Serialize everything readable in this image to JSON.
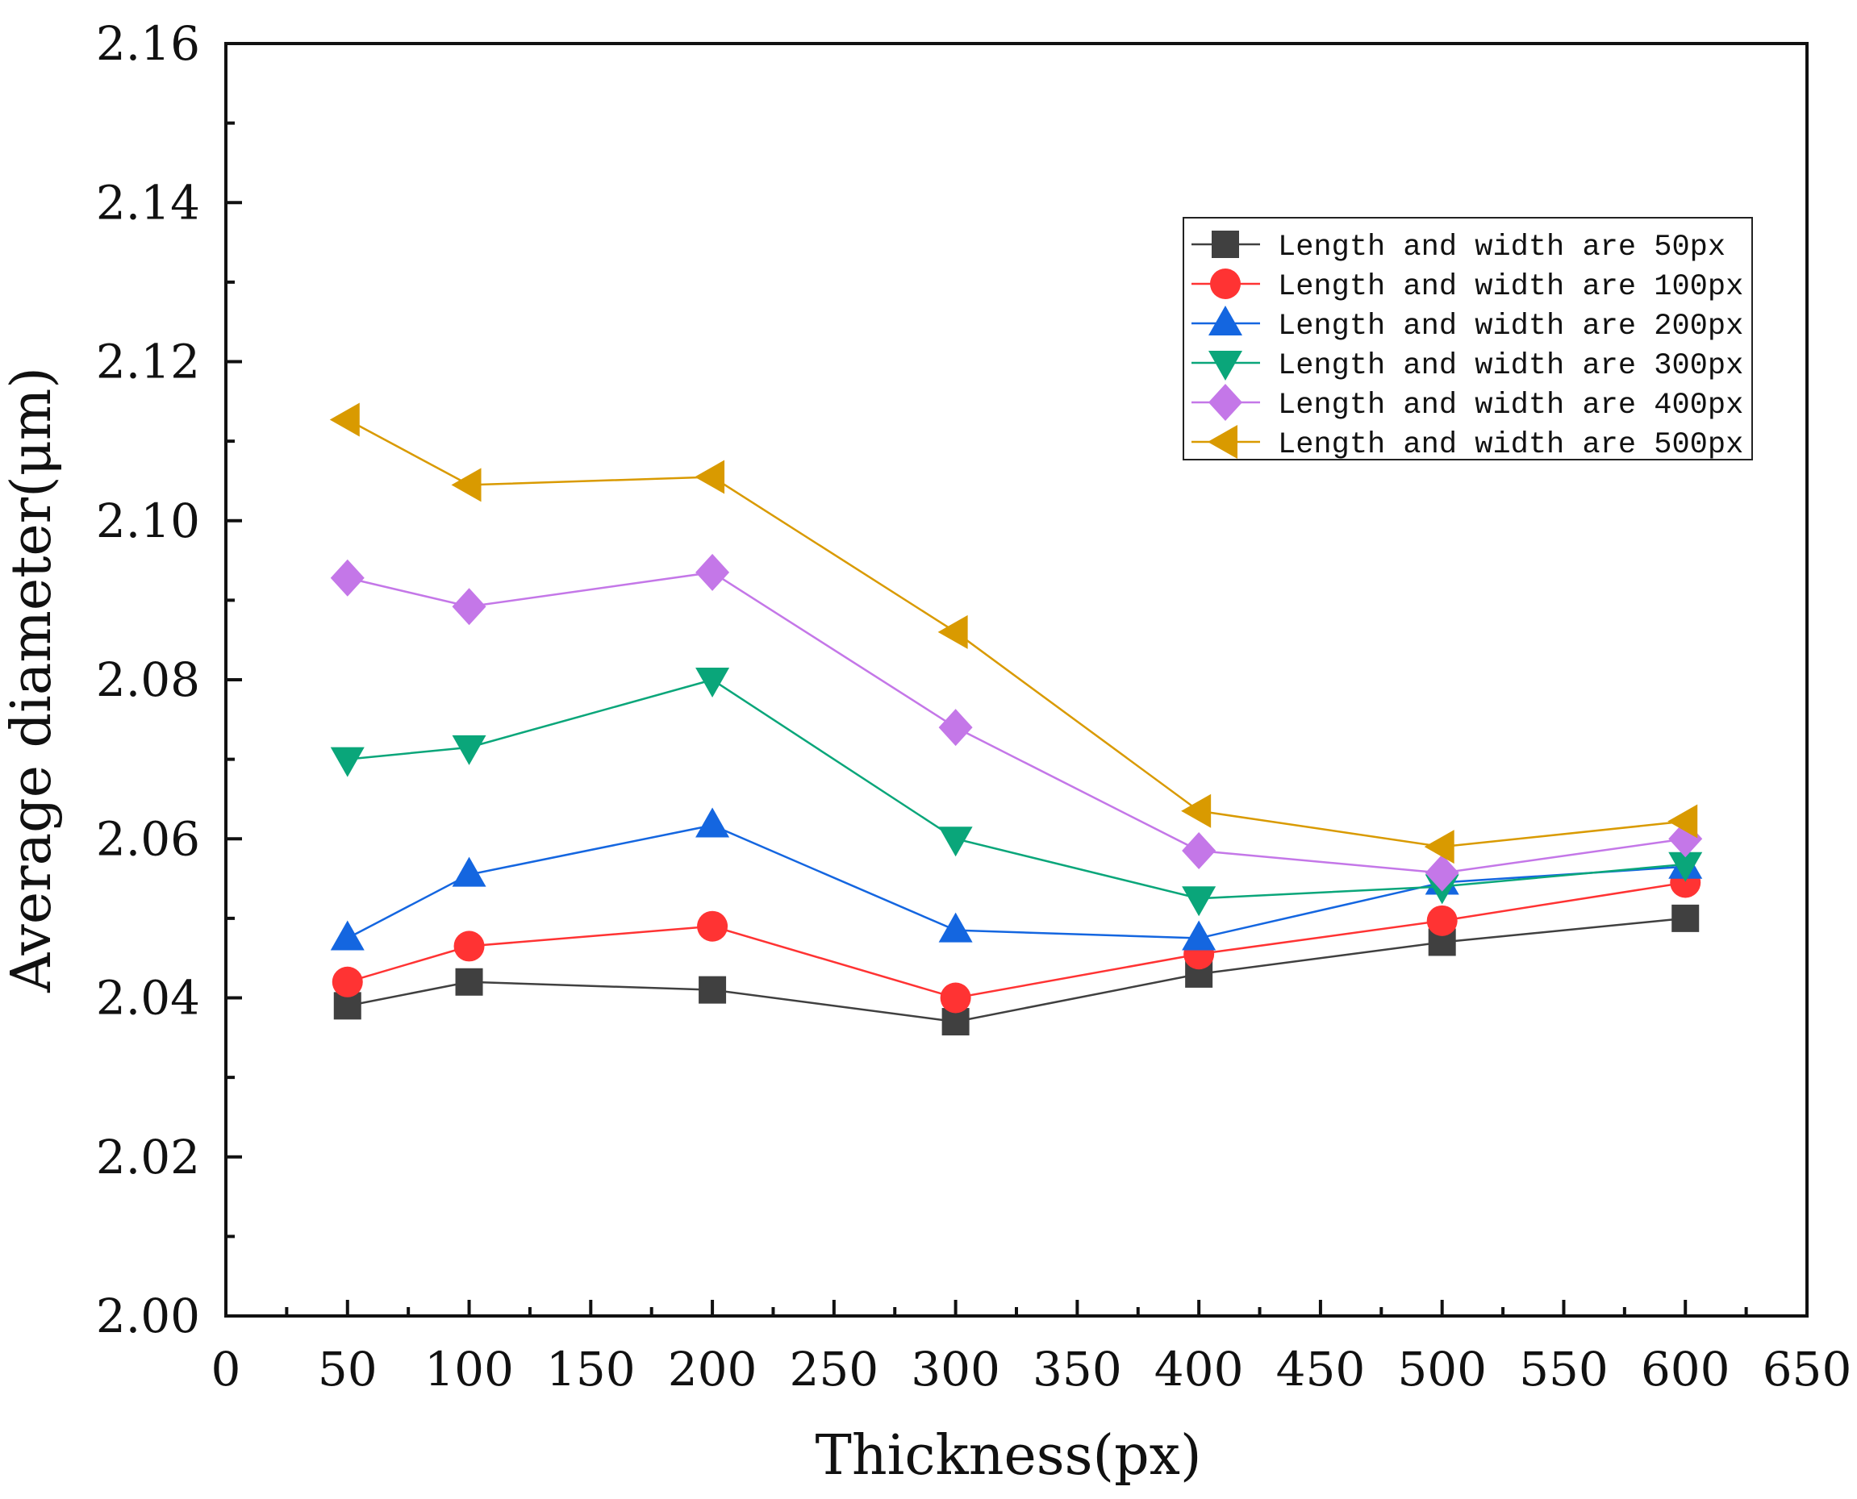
{
  "chart_data": {
    "type": "line",
    "xlabel": "Thickness(px)",
    "ylabel": "Average diameter(μm)",
    "xlim": [
      0,
      650
    ],
    "ylim": [
      2.0,
      2.16
    ],
    "xticks": [
      0,
      50,
      100,
      150,
      200,
      250,
      300,
      350,
      400,
      450,
      500,
      550,
      600,
      650
    ],
    "xtick_labels": [
      "0",
      "50",
      "100",
      "150",
      "200",
      "250",
      "300",
      "350",
      "400",
      "450",
      "500",
      "550",
      "600",
      "650"
    ],
    "yticks": [
      2.0,
      2.02,
      2.04,
      2.06,
      2.08,
      2.1,
      2.12,
      2.14,
      2.16
    ],
    "ytick_labels": [
      "2.00",
      "2.02",
      "2.04",
      "2.06",
      "2.08",
      "2.10",
      "2.12",
      "2.14",
      "2.16"
    ],
    "x": [
      50,
      100,
      200,
      300,
      400,
      500,
      600
    ],
    "legend_position": "top-right",
    "series": [
      {
        "name": "Length and width are 50px",
        "color": "#404040",
        "marker": "square",
        "values": [
          2.039,
          2.042,
          2.041,
          2.037,
          2.043,
          2.047,
          2.05
        ]
      },
      {
        "name": "Length and width are 100px",
        "color": "#ff3333",
        "marker": "circle",
        "values": [
          2.042,
          2.0465,
          2.049,
          2.04,
          2.0455,
          2.0497,
          2.0545
        ]
      },
      {
        "name": "Length and width are 200px",
        "color": "#1466e0",
        "marker": "triangle-up",
        "values": [
          2.0475,
          2.0555,
          2.0617,
          2.0485,
          2.0475,
          2.0545,
          2.0565
        ]
      },
      {
        "name": "Length and width are 300px",
        "color": "#0aa67a",
        "marker": "triangle-down",
        "values": [
          2.07,
          2.0715,
          2.08,
          2.06,
          2.0525,
          2.054,
          2.0568
        ]
      },
      {
        "name": "Length and width are 400px",
        "color": "#c477e8",
        "marker": "diamond",
        "values": [
          2.0928,
          2.0892,
          2.0935,
          2.074,
          2.0585,
          2.0557,
          2.06
        ]
      },
      {
        "name": "Length and width are 500px",
        "color": "#d99a00",
        "marker": "triangle-left",
        "values": [
          2.1127,
          2.1045,
          2.1055,
          2.086,
          2.0635,
          2.059,
          2.0622
        ]
      }
    ]
  }
}
